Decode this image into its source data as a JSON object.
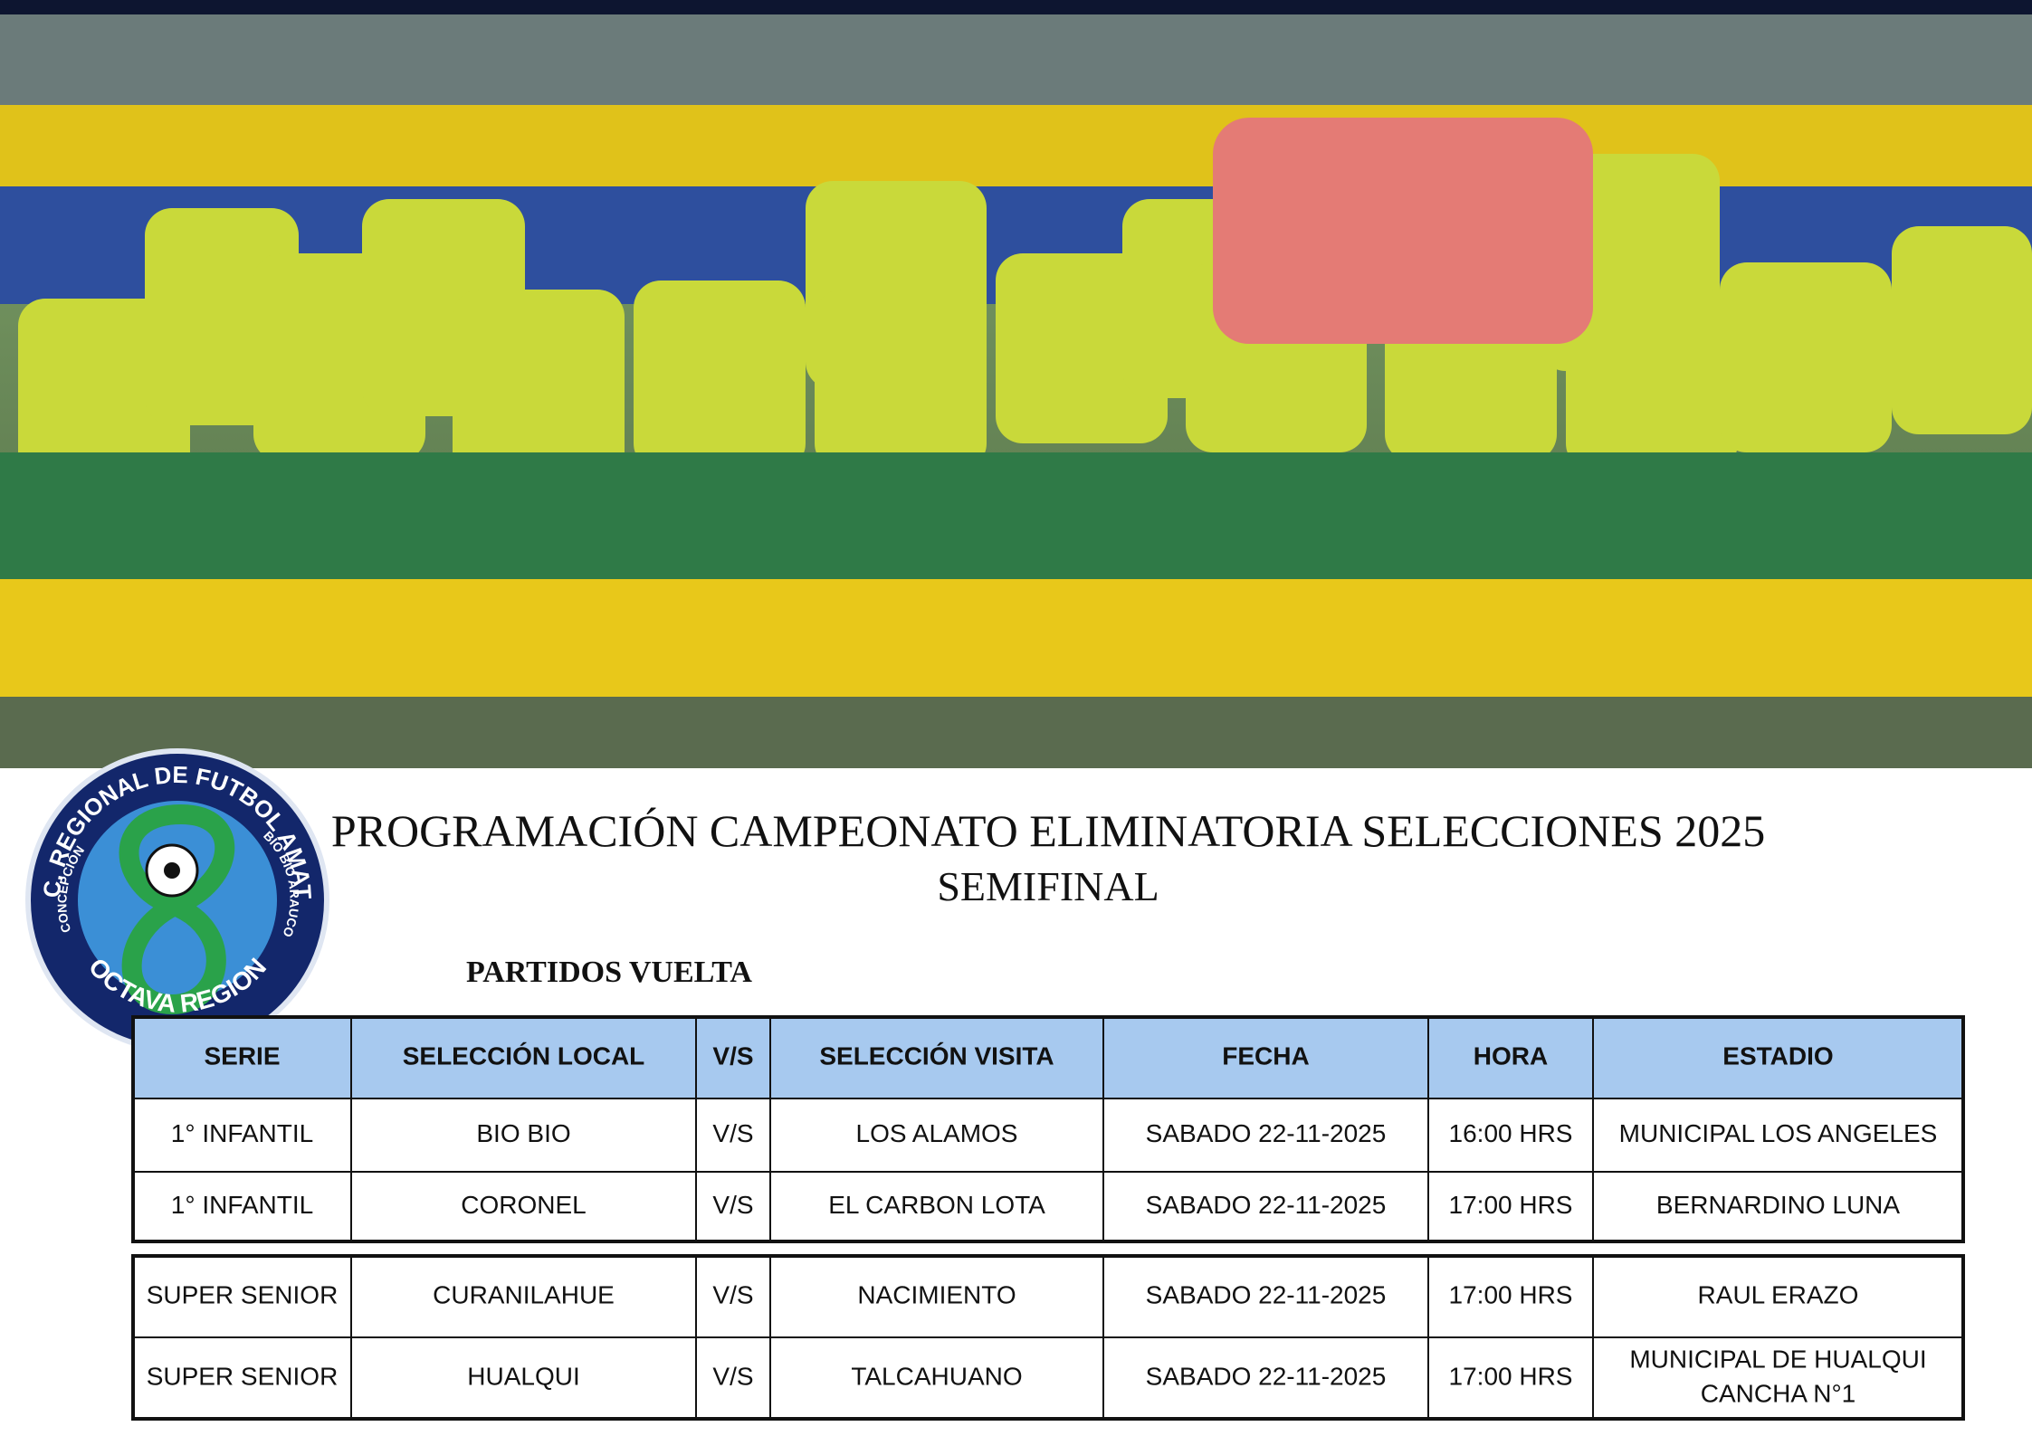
{
  "logo": {
    "top_text": "ASOC. REGIONAL DE FUTBOL AMATEUR",
    "left_text": "CONCEPCIÓN",
    "right_text": "BIO BIO ARAUCO",
    "bottom_text": "OCTAVA REGION"
  },
  "header": {
    "title": "PROGRAMACIÓN CAMPEONATO ELIMINATORIA SELECCIONES 2025",
    "subtitle": "SEMIFINAL",
    "section": "PARTIDOS VUELTA"
  },
  "table": {
    "header": [
      "SERIE",
      "SELECCIÓN LOCAL",
      "V/S",
      "SELECCIÓN VISITA",
      "FECHA",
      "HORA",
      "ESTADIO"
    ],
    "rows": [
      [
        "1° INFANTIL",
        "BIO BIO",
        "V/S",
        "LOS ALAMOS",
        "SABADO 22-11-2025",
        "16:00 HRS",
        "MUNICIPAL LOS ANGELES"
      ],
      [
        "1° INFANTIL",
        "CORONEL",
        "V/S",
        "EL CARBON LOTA",
        "SABADO 22-11-2025",
        "17:00 HRS",
        "BERNARDINO LUNA"
      ],
      [
        "SUPER SENIOR",
        "CURANILAHUE",
        "V/S",
        "NACIMIENTO",
        "SABADO 22-11-2025",
        "17:00 HRS",
        "RAUL ERAZO"
      ],
      [
        "SUPER SENIOR",
        "HUALQUI",
        "V/S",
        "TALCAHUANO",
        "SABADO 22-11-2025",
        "17:00 HRS",
        [
          "MUNICIPAL DE HUALQUI",
          "CANCHA N°1"
        ]
      ]
    ]
  }
}
